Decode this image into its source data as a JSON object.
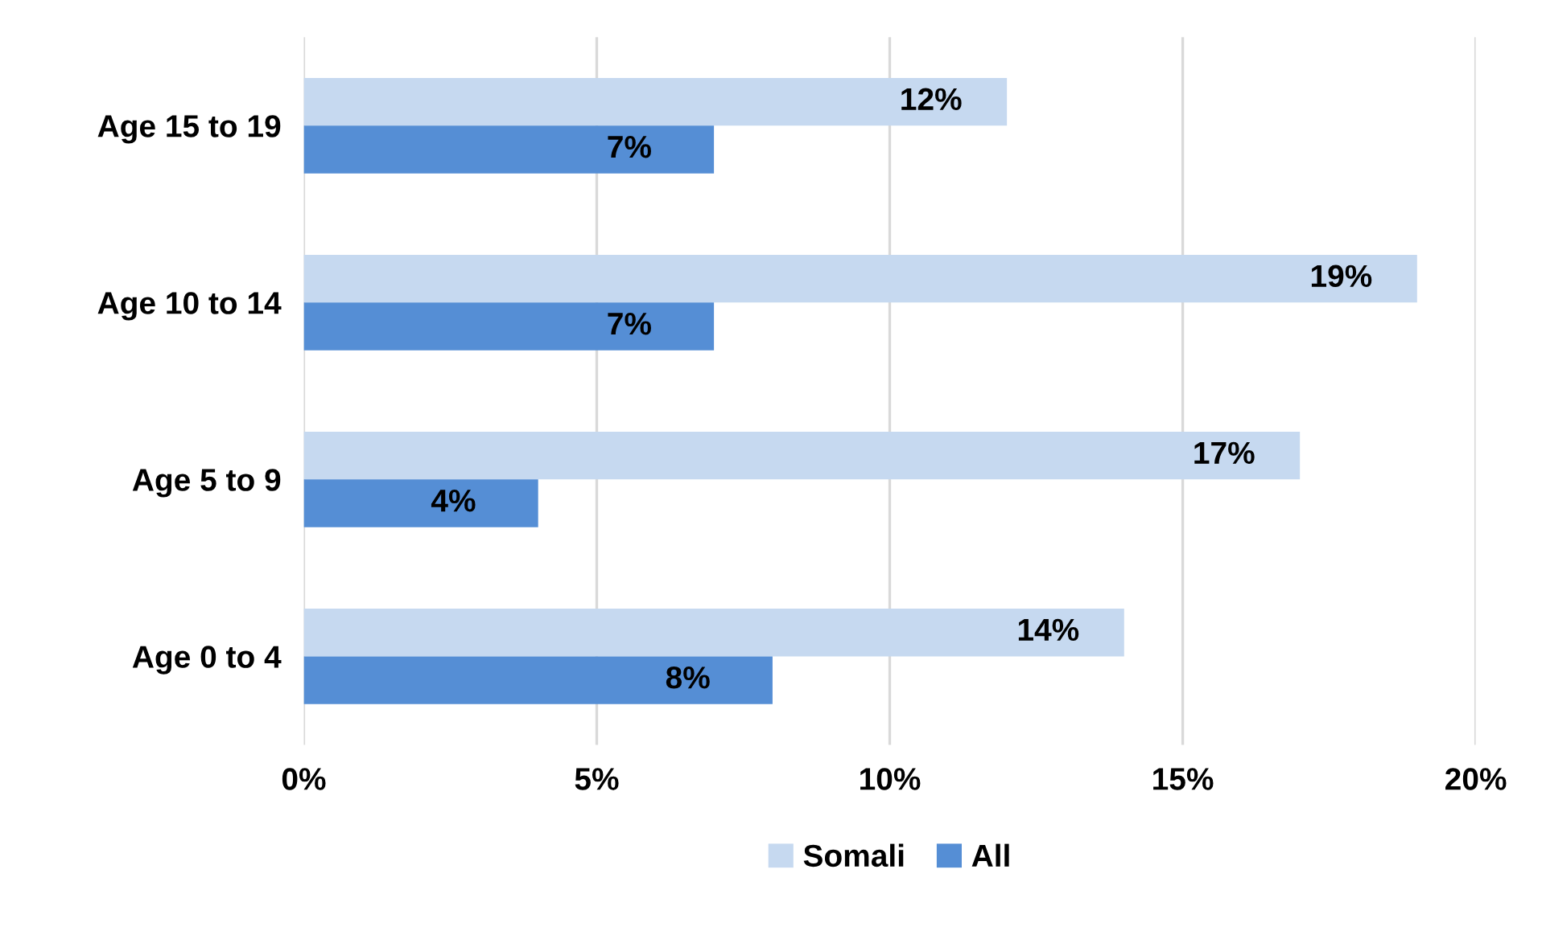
{
  "chart_data": {
    "type": "bar",
    "orientation": "horizontal",
    "categories": [
      "Age 15 to 19",
      "Age 10 to 14",
      "Age 5 to 9",
      "Age 0 to 4"
    ],
    "series": [
      {
        "name": "Somali",
        "color": "#c6d9f0",
        "values": [
          12,
          19,
          17,
          14
        ],
        "value_labels": [
          "12%",
          "19%",
          "17%",
          "14%"
        ]
      },
      {
        "name": "All",
        "color": "#558ed5",
        "values": [
          7,
          7,
          4,
          8
        ],
        "value_labels": [
          "7%",
          "7%",
          "4%",
          "8%"
        ]
      }
    ],
    "xlim": [
      0,
      20
    ],
    "xticks": [
      {
        "value": 0,
        "label": "0%"
      },
      {
        "value": 5,
        "label": "5%"
      },
      {
        "value": 10,
        "label": "10%"
      },
      {
        "value": 15,
        "label": "15%"
      },
      {
        "value": 20,
        "label": "20%"
      }
    ],
    "grid": "x",
    "legend": "bottom"
  }
}
